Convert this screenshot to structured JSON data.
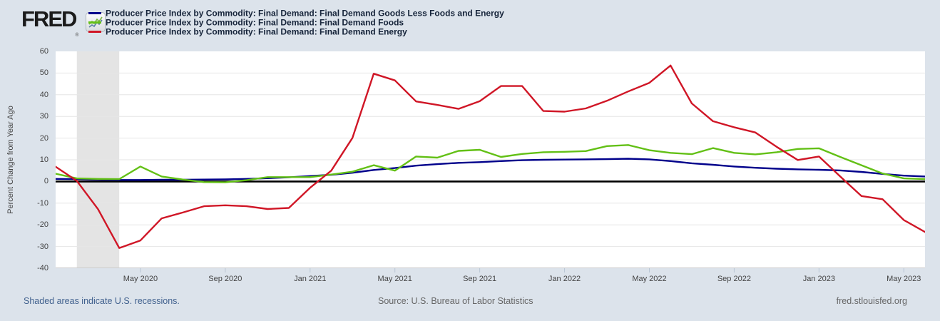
{
  "header": {
    "logo_text": "FRED",
    "logo_registered_mark": "®",
    "legend": [
      {
        "label": "Producer Price Index by Commodity: Final Demand: Final Demand Goods Less Foods and Energy",
        "color": "#00008b"
      },
      {
        "label": "Producer Price Index by Commodity: Final Demand: Final Demand Foods",
        "color": "#63c016"
      },
      {
        "label": "Producer Price Index by Commodity: Final Demand: Final Demand Energy",
        "color": "#d01626"
      }
    ]
  },
  "axes": {
    "y_title": "Percent Change from Year Ago"
  },
  "footer": {
    "left": "Shaded areas indicate U.S. recessions.",
    "center": "Source: U.S. Bureau of Labor Statistics",
    "right": "fred.stlouisfed.org"
  },
  "colors": {
    "page_bg": "#dce3eb",
    "plot_bg": "#ffffff",
    "gridline": "#e6e6e6",
    "zero_line": "#000000",
    "recession_band": "#e4e4e4",
    "axis_tick": "#b9c6d4",
    "axis_bottom_edge": "#cccccc",
    "axis_text": "#444444",
    "legend_text": "#16243a",
    "footer_link": "#41618e",
    "footer_text": "#666666"
  },
  "chart_data": {
    "type": "line",
    "title": "",
    "ylabel": "Percent Change from Year Ago",
    "ylim": [
      -40,
      60
    ],
    "y_ticks": [
      60,
      50,
      40,
      30,
      20,
      10,
      0,
      -10,
      -20,
      -30,
      -40
    ],
    "grid": "horizontal",
    "zero_line": true,
    "legend_position": "top-left",
    "x_unit": "month",
    "months": [
      "2020-01",
      "2020-02",
      "2020-03",
      "2020-04",
      "2020-05",
      "2020-06",
      "2020-07",
      "2020-08",
      "2020-09",
      "2020-10",
      "2020-11",
      "2020-12",
      "2021-01",
      "2021-02",
      "2021-03",
      "2021-04",
      "2021-05",
      "2021-06",
      "2021-07",
      "2021-08",
      "2021-09",
      "2021-10",
      "2021-11",
      "2021-12",
      "2022-01",
      "2022-02",
      "2022-03",
      "2022-04",
      "2022-05",
      "2022-06",
      "2022-07",
      "2022-08",
      "2022-09",
      "2022-10",
      "2022-11",
      "2022-12",
      "2023-01",
      "2023-02",
      "2023-03",
      "2023-04",
      "2023-05",
      "2023-06"
    ],
    "x_tick_labels": [
      "May 2020",
      "Sep 2020",
      "Jan 2021",
      "May 2021",
      "Sep 2021",
      "Jan 2022",
      "May 2022",
      "Sep 2022",
      "Jan 2023",
      "May 2023"
    ],
    "x_tick_month_indices": [
      4,
      8,
      12,
      16,
      20,
      24,
      28,
      32,
      36,
      40
    ],
    "recession_band_month_indices": [
      1,
      3
    ],
    "series": [
      {
        "name": "Producer Price Index by Commodity: Final Demand: Final Demand Goods Less Foods and Energy",
        "color": "#00008b",
        "values": [
          1.2,
          1.1,
          0.9,
          0.7,
          0.7,
          0.8,
          0.8,
          0.9,
          1.0,
          1.2,
          1.5,
          1.9,
          2.5,
          3.1,
          4.0,
          5.3,
          6.2,
          7.3,
          8.0,
          8.6,
          8.9,
          9.4,
          9.8,
          10.0,
          10.1,
          10.2,
          10.3,
          10.5,
          10.2,
          9.4,
          8.4,
          7.7,
          6.9,
          6.3,
          5.9,
          5.6,
          5.4,
          5.1,
          4.4,
          3.5,
          2.7,
          2.3
        ]
      },
      {
        "name": "Producer Price Index by Commodity: Final Demand: Final Demand Foods",
        "color": "#63c016",
        "values": [
          3.6,
          1.4,
          1.2,
          1.1,
          6.9,
          2.3,
          0.9,
          -0.3,
          -0.4,
          0.6,
          2.0,
          2.0,
          2.0,
          3.2,
          4.5,
          7.5,
          5.0,
          11.5,
          11.0,
          14.1,
          14.6,
          11.3,
          12.7,
          13.5,
          13.7,
          14.0,
          16.3,
          16.8,
          14.4,
          13.2,
          12.6,
          15.4,
          13.2,
          12.5,
          13.5,
          15.0,
          15.3,
          11.3,
          7.5,
          3.7,
          1.4,
          1.1
        ]
      },
      {
        "name": "Producer Price Index by Commodity: Final Demand: Final Demand Energy",
        "color": "#d01626",
        "values": [
          6.8,
          0.3,
          -12.8,
          -30.7,
          -27.2,
          -17.0,
          -14.3,
          -11.4,
          -11.0,
          -11.4,
          -12.7,
          -12.2,
          -2.9,
          5.0,
          20.1,
          49.7,
          46.6,
          36.9,
          35.3,
          33.5,
          37.0,
          44.0,
          44.0,
          32.5,
          32.2,
          33.7,
          37.2,
          41.5,
          45.5,
          53.5,
          36.0,
          27.8,
          25.0,
          22.6,
          16.0,
          9.9,
          11.5,
          2.3,
          -6.7,
          -8.2,
          -17.8,
          -23.3
        ]
      }
    ]
  }
}
